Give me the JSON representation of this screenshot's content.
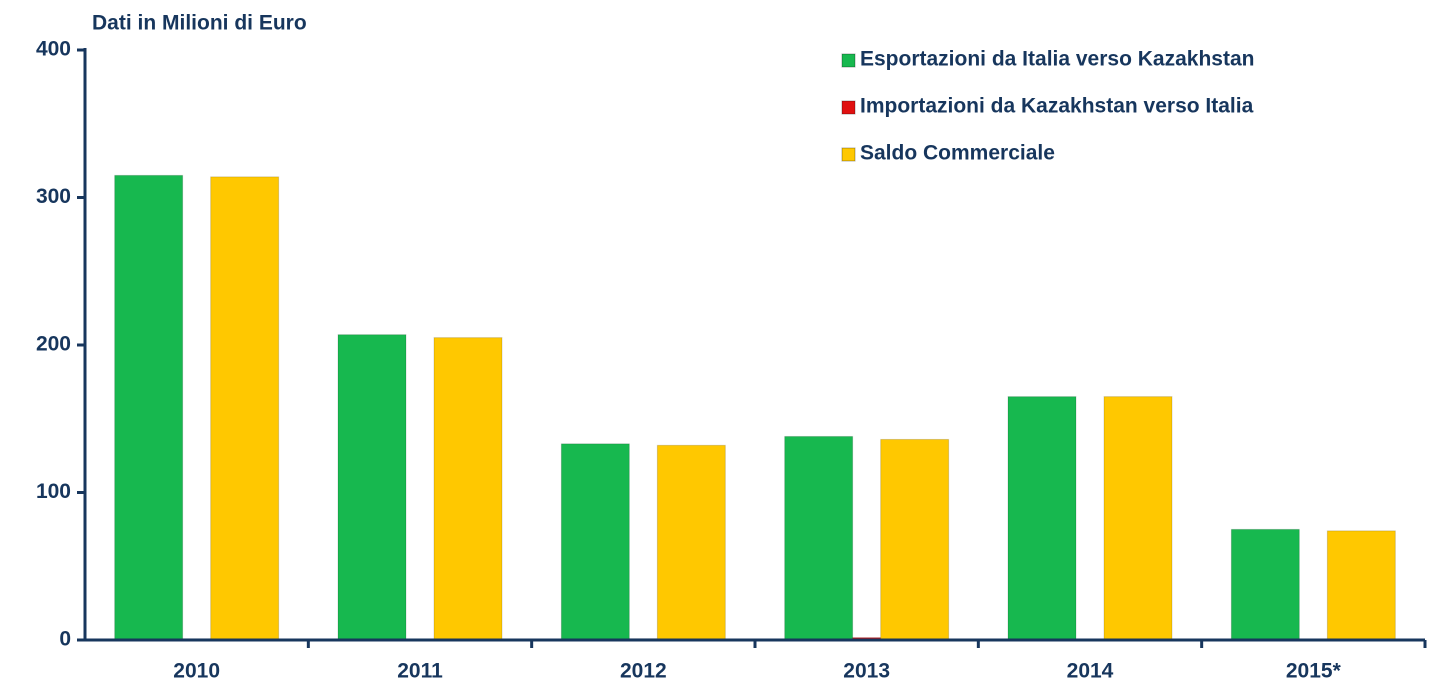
{
  "chart_data": {
    "type": "bar",
    "title": "Dati in Milioni di Euro",
    "categories": [
      "2010",
      "2011",
      "2012",
      "2013",
      "2014",
      "2015*"
    ],
    "series": [
      {
        "name": "Esportazioni da Italia verso Kazakhstan",
        "color": "#17b84f",
        "values": [
          315,
          207,
          133,
          138,
          165,
          75
        ]
      },
      {
        "name": "Importazioni da Kazakhstan verso Italia",
        "color": "#e01010",
        "values": [
          0.8,
          0.7,
          0.9,
          1.6,
          0.5,
          0.4
        ]
      },
      {
        "name": "Saldo Commerciale",
        "color": "#ffc800",
        "values": [
          314,
          205,
          132,
          136,
          165,
          74
        ]
      }
    ],
    "ylim": [
      0,
      400
    ],
    "yticks": [
      0,
      100,
      200,
      300,
      400
    ],
    "legend": "top-right"
  }
}
